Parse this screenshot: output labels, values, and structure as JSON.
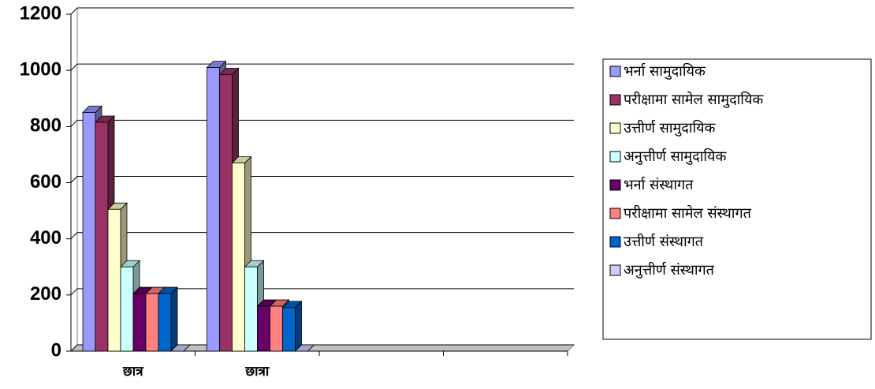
{
  "chart_data": {
    "type": "bar3d",
    "categories": [
      "छात्र",
      "छात्रा",
      null,
      null
    ],
    "series": [
      {
        "name": "भर्ना सामुदायिक",
        "color": "#9999ff",
        "values": [
          850,
          1010,
          null,
          null
        ]
      },
      {
        "name": "परीक्षामा सामेल सामुदायिक",
        "color": "#993366",
        "values": [
          815,
          985,
          null,
          null
        ]
      },
      {
        "name": "उत्तीर्ण सामुदायिक",
        "color": "#ffffcc",
        "values": [
          505,
          670,
          null,
          null
        ]
      },
      {
        "name": "अनुत्तीर्ण सामुदायिक",
        "color": "#ccffff",
        "values": [
          300,
          300,
          null,
          null
        ]
      },
      {
        "name": "भर्ना संस्थागत",
        "color": "#660066",
        "values": [
          205,
          160,
          null,
          null
        ]
      },
      {
        "name": "परीक्षामा सामेल संस्थागत",
        "color": "#ff8080",
        "values": [
          205,
          160,
          null,
          null
        ]
      },
      {
        "name": "उत्तीर्ण संस्थागत",
        "color": "#0066cc",
        "values": [
          205,
          155,
          null,
          null
        ]
      },
      {
        "name": "अनुत्तीर्ण संस्थागत",
        "color": "#ccccff",
        "values": [
          0,
          0,
          null,
          null
        ]
      }
    ],
    "ylim": [
      0,
      1200
    ],
    "yticks": [
      0,
      200,
      400,
      600,
      800,
      1000,
      1200
    ],
    "grid": true,
    "legend": "right"
  }
}
